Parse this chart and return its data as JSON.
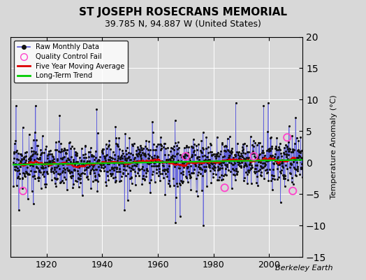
{
  "title": "ST JOSEPH ROSECRANS MEMORIAL",
  "subtitle": "39.785 N, 94.887 W (United States)",
  "ylabel": "Temperature Anomaly (°C)",
  "attribution": "Berkeley Earth",
  "year_start": 1908,
  "year_end": 2012,
  "ylim": [
    -15,
    20
  ],
  "yticks": [
    -15,
    -10,
    -5,
    0,
    5,
    10,
    15,
    20
  ],
  "bg_color": "#d8d8d8",
  "plot_bg_color": "#d8d8d8",
  "raw_line_color": "#5555dd",
  "raw_dot_color": "#111111",
  "qc_fail_color": "#ff44cc",
  "moving_avg_color": "#dd0000",
  "trend_color": "#00cc00",
  "seed": 17
}
